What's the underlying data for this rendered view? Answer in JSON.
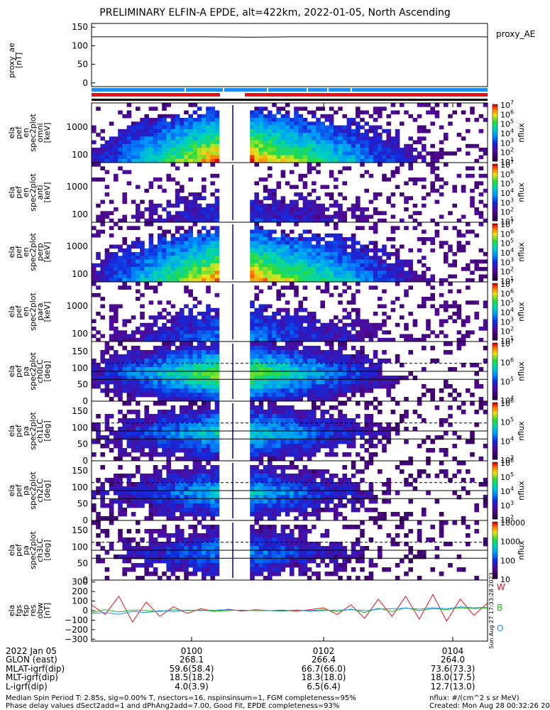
{
  "title": "PRELIMINARY ELFIN-A EPDE, alt=422km, 2022-01-05, North Ascending",
  "colors": {
    "red": "#e8101c",
    "blue": "#1f8ef0",
    "green": "#18b818",
    "black": "#000000"
  },
  "chart_data": [
    {
      "type": "line",
      "panel": "proxy_ae",
      "ylabel": [
        "proxy_ae",
        "[nT]"
      ],
      "legend": "proxy_AE",
      "yticks": [
        "150",
        "100",
        "50",
        "0"
      ],
      "ylim": [
        -10,
        160
      ],
      "series": [
        {
          "values": [
            124,
            124,
            124,
            124,
            123,
            124,
            124,
            124,
            124,
            124,
            124
          ]
        }
      ]
    },
    {
      "type": "heatmap",
      "panel": "pef_en_spec2plot_omni",
      "ylabel": [
        "ela",
        "pef",
        "en",
        "spec2plot",
        "omni",
        "[keV]"
      ],
      "yticks": [
        "1000",
        "100"
      ],
      "scale": "log",
      "colorbar_ticks": [
        "10^7",
        "10^6",
        "10^5",
        "10^4",
        "10^3",
        "10^2",
        "10^1"
      ],
      "zlabel": "nflux"
    },
    {
      "type": "heatmap",
      "panel": "pef_en_spec2plot_anti",
      "ylabel": [
        "ela",
        "pef",
        "en",
        "spec2plot",
        "anti",
        "[keV]"
      ],
      "yticks": [
        "1000",
        "100"
      ],
      "scale": "log",
      "colorbar_ticks": [
        "10^7",
        "10^6",
        "10^5",
        "10^4",
        "10^3",
        "10^2",
        "10^1"
      ],
      "zlabel": "nflux"
    },
    {
      "type": "heatmap",
      "panel": "pef_en_spec2plot_perp",
      "ylabel": [
        "ela",
        "pef",
        "en",
        "spec2plot",
        "perp",
        "[keV]"
      ],
      "yticks": [
        "1000",
        "100"
      ],
      "scale": "log",
      "colorbar_ticks": [
        "10^7",
        "10^6",
        "10^5",
        "10^4",
        "10^3",
        "10^2",
        "10^1"
      ],
      "zlabel": "nflux"
    },
    {
      "type": "heatmap",
      "panel": "pef_en_spec2plot_para",
      "ylabel": [
        "ela",
        "pef",
        "en",
        "spec2plot",
        "para",
        "[keV]"
      ],
      "yticks": [
        "1000",
        "100"
      ],
      "scale": "log",
      "colorbar_ticks": [
        "10^7",
        "10^6",
        "10^5",
        "10^4",
        "10^3",
        "10^2",
        "10^1"
      ],
      "zlabel": "nflux"
    },
    {
      "type": "heatmap",
      "panel": "pef_pa_spec2plot_ch0LC",
      "ylabel": [
        "ela",
        "pef",
        "pa",
        "spec2plot",
        "ch0LC",
        "[deg]"
      ],
      "yticks": [
        "150",
        "100",
        "50",
        "0"
      ],
      "ylim": [
        0,
        180
      ],
      "colorbar_ticks": [
        "10^7",
        "10^6",
        "10^5",
        "10^4"
      ],
      "zlabel": "nflux"
    },
    {
      "type": "heatmap",
      "panel": "pef_pa_spec2plot_ch1LC",
      "ylabel": [
        "ela",
        "pef",
        "pa",
        "spec2plot",
        "ch1LC",
        "[deg]"
      ],
      "yticks": [
        "150",
        "100",
        "50",
        "0"
      ],
      "ylim": [
        0,
        180
      ],
      "colorbar_ticks": [
        "10^6",
        "10^5",
        "10^4",
        "10^3"
      ],
      "zlabel": "nflux"
    },
    {
      "type": "heatmap",
      "panel": "pef_pa_spec2plot_ch2LC",
      "ylabel": [
        "ela",
        "pef",
        "pa",
        "spec2plot",
        "ch2LC",
        "[deg]"
      ],
      "yticks": [
        "150",
        "100",
        "50",
        "0"
      ],
      "ylim": [
        0,
        180
      ],
      "colorbar_ticks": [
        "10^6",
        "10^5",
        "10^4",
        "10^3",
        "10^2"
      ],
      "zlabel": "nflux"
    },
    {
      "type": "heatmap",
      "panel": "pef_pa_spec2plot_ch3LC",
      "ylabel": [
        "ela",
        "pef",
        "pa",
        "spec2plot",
        "ch3LC",
        "[deg]"
      ],
      "yticks": [
        "150",
        "100",
        "50",
        "0"
      ],
      "ylim": [
        0,
        180
      ],
      "colorbar_ticks": [
        "10000",
        "1000",
        "100",
        "10"
      ],
      "zlabel": "nflux"
    },
    {
      "type": "line",
      "panel": "fgs_fsp_res_obw",
      "ylabel": [
        "ela",
        "fgs",
        "fsp",
        "res",
        "obw",
        "[nT]"
      ],
      "yticks": [
        "300",
        "200",
        "100",
        "0",
        "−100",
        "−200",
        "−300"
      ],
      "ylim": [
        -320,
        320
      ],
      "legend": [
        "W",
        "B",
        "O"
      ],
      "series": [
        {
          "name": "W",
          "values": [
            60,
            -40,
            150,
            -120,
            90,
            -60,
            40,
            -30,
            20,
            -10,
            15,
            -5,
            10,
            0,
            5,
            -5,
            10,
            30,
            -40,
            60,
            -80,
            120,
            -60,
            150,
            -90,
            170,
            -110,
            120,
            -50,
            80
          ]
        },
        {
          "name": "B",
          "values": [
            -20,
            10,
            -15,
            5,
            0,
            -10,
            10,
            0,
            5,
            -5,
            0,
            5,
            0,
            0,
            -5,
            5,
            0,
            10,
            -10,
            15,
            -20,
            25,
            -10,
            30,
            0,
            20,
            10,
            30,
            20,
            25
          ]
        },
        {
          "name": "O",
          "values": [
            -30,
            -20,
            -40,
            -10,
            -20,
            0,
            -10,
            5,
            0,
            5,
            10,
            0,
            5,
            0,
            0,
            5,
            -5,
            0,
            5,
            10,
            0,
            15,
            20,
            25,
            15,
            30,
            20,
            40,
            30,
            35
          ]
        }
      ]
    }
  ],
  "side_note": "Sun Aug 27 17:33:28 2023",
  "xaxis": {
    "rows": [
      {
        "label": "2022 Jan 05",
        "values": [
          "0100",
          "0102",
          "0104"
        ]
      },
      {
        "label": "GLON (east)",
        "values": [
          "268.1",
          "266.4",
          "264.0"
        ]
      },
      {
        "label": "MLAT-igrf(dip)",
        "values": [
          "59.6(58.4)",
          "66.7(66.0)",
          "73.6(73.3)"
        ]
      },
      {
        "label": "MLT-igrf(dip)",
        "values": [
          "18.5(18.2)",
          "18.3(18.0)",
          "18.0(17.5)"
        ]
      },
      {
        "label": "L-igrf(dip)",
        "values": [
          "4.0(3.9)",
          "6.5(6.4)",
          "12.7(13.0)"
        ]
      }
    ]
  },
  "footer": {
    "line1": "Median Spin Period T: 2.85s, sig=0.00% T, nsectors=16, nspinsinsum=1, FGM completeness=95%",
    "line2": "Phase delay values dSect2add=1 and dPhAng2add=7.00, Good Fit, EPDE completeness=93%",
    "right1": "nflux: #/(cm^2 s sr MeV)",
    "right2": "Created: Mon Aug 28 00:32:26 2023"
  }
}
